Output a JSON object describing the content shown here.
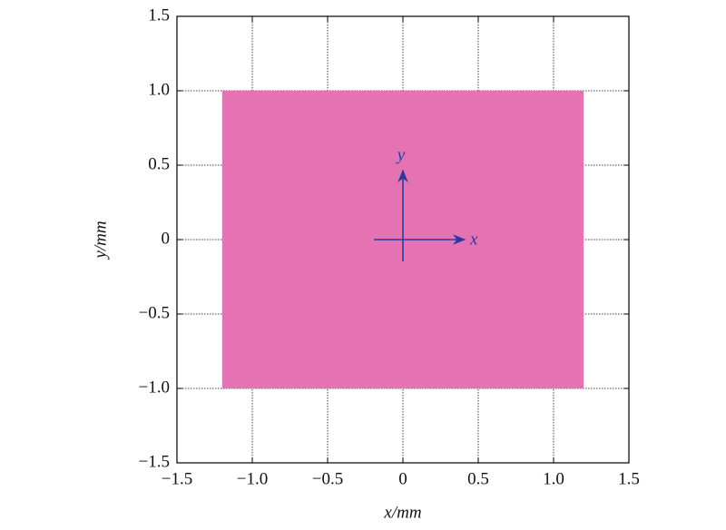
{
  "chart_data": {
    "type": "region",
    "xlabel": "x/mm",
    "ylabel": "y/mm",
    "region": {
      "x": [
        -1.2,
        1.2
      ],
      "y": [
        -1.0,
        1.0
      ]
    },
    "color": "#e573b3",
    "annotations": [
      "x",
      "y"
    ],
    "arrow_color": "#2b3a9e",
    "xlim": [
      -1.5,
      1.5
    ],
    "ylim": [
      -1.5,
      1.5
    ],
    "xticks": [
      {
        "value": -1.5,
        "label": "−1.5"
      },
      {
        "value": -1,
        "label": "−1.0"
      },
      {
        "value": -0.5,
        "label": "−0.5"
      },
      0,
      0.5,
      {
        "value": 1,
        "label": "1.0"
      },
      1.5
    ],
    "yticks": [
      {
        "value": -1.5,
        "label": "−1.5"
      },
      {
        "value": -1,
        "label": "−1.0"
      },
      {
        "value": -0.5,
        "label": "−0.5"
      },
      0,
      0.5,
      {
        "value": 1,
        "label": "1.0"
      },
      1.5
    ],
    "grid": true
  }
}
